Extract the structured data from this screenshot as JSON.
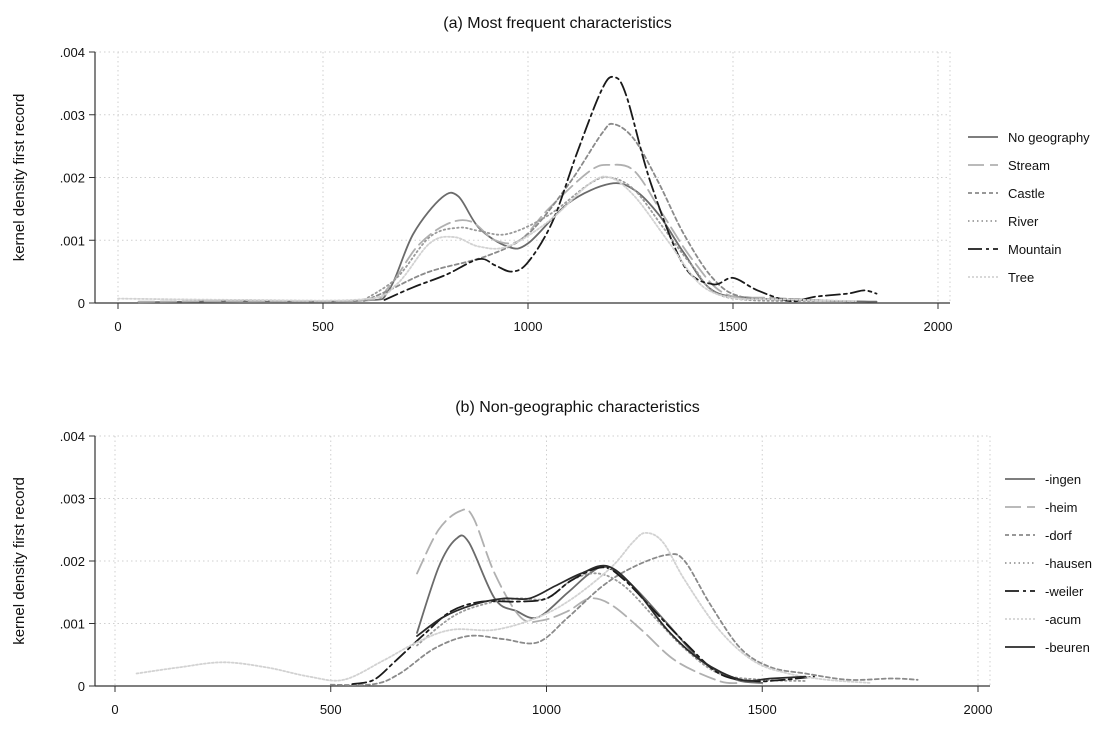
{
  "chart_data": [
    {
      "type": "line",
      "title": "(a) Most frequent characteristics",
      "xlabel": "",
      "ylabel": "kernel density first record",
      "xlim": [
        0,
        2000
      ],
      "ylim": [
        0,
        0.004
      ],
      "x_ticks": [
        "0",
        "500",
        "1000",
        "1500",
        "2000"
      ],
      "y_ticks": [
        "0",
        ".001",
        ".002",
        ".003",
        ".004"
      ],
      "grid": true,
      "legend": "right",
      "series": [
        {
          "name": "No geography",
          "color": "#6b6b6b",
          "dash": "",
          "points": [
            [
              50,
              1e-05
            ],
            [
              300,
              3e-05
            ],
            [
              600,
              4e-05
            ],
            [
              660,
              0.0002
            ],
            [
              720,
              0.0011
            ],
            [
              790,
              0.00168
            ],
            [
              830,
              0.0017
            ],
            [
              880,
              0.0012
            ],
            [
              950,
              0.0009
            ],
            [
              1000,
              0.00095
            ],
            [
              1100,
              0.0016
            ],
            [
              1200,
              0.0019
            ],
            [
              1260,
              0.0018
            ],
            [
              1320,
              0.0014
            ],
            [
              1380,
              0.0008
            ],
            [
              1450,
              0.0002
            ],
            [
              1550,
              8e-05
            ],
            [
              1700,
              4e-05
            ],
            [
              1850,
              2e-05
            ]
          ]
        },
        {
          "name": "Stream",
          "color": "#b0b0b0",
          "dash": "16 6",
          "points": [
            [
              50,
              2e-05
            ],
            [
              300,
              3e-05
            ],
            [
              600,
              4e-05
            ],
            [
              660,
              0.00025
            ],
            [
              730,
              0.0009
            ],
            [
              800,
              0.00125
            ],
            [
              860,
              0.0013
            ],
            [
              920,
              0.001
            ],
            [
              980,
              0.001
            ],
            [
              1050,
              0.0015
            ],
            [
              1150,
              0.0021
            ],
            [
              1200,
              0.0022
            ],
            [
              1260,
              0.0021
            ],
            [
              1330,
              0.0014
            ],
            [
              1400,
              0.0007
            ],
            [
              1480,
              0.00015
            ],
            [
              1600,
              8e-05
            ],
            [
              1800,
              2e-05
            ]
          ]
        },
        {
          "name": "Castle",
          "color": "#8a8a8a",
          "dash": "4 3",
          "points": [
            [
              600,
              3e-05
            ],
            [
              660,
              0.0002
            ],
            [
              760,
              0.0005
            ],
            [
              900,
              0.00075
            ],
            [
              1000,
              0.0011
            ],
            [
              1100,
              0.0019
            ],
            [
              1180,
              0.0027
            ],
            [
              1210,
              0.00285
            ],
            [
              1260,
              0.0026
            ],
            [
              1320,
              0.0019
            ],
            [
              1380,
              0.0011
            ],
            [
              1450,
              0.0004
            ],
            [
              1520,
              0.0001
            ],
            [
              1650,
              6e-05
            ],
            [
              1800,
              2e-05
            ]
          ]
        },
        {
          "name": "River",
          "color": "#9a9a9a",
          "dash": "1.5 3",
          "points": [
            [
              600,
              5e-05
            ],
            [
              680,
              0.0004
            ],
            [
              760,
              0.00105
            ],
            [
              830,
              0.0012
            ],
            [
              880,
              0.00115
            ],
            [
              950,
              0.0011
            ],
            [
              1050,
              0.0014
            ],
            [
              1150,
              0.0019
            ],
            [
              1200,
              0.002
            ],
            [
              1260,
              0.0018
            ],
            [
              1330,
              0.0012
            ],
            [
              1400,
              0.0006
            ],
            [
              1480,
              0.0001
            ],
            [
              1700,
              3e-05
            ]
          ]
        },
        {
          "name": "Mountain",
          "color": "#1a1a1a",
          "dash": "14 4 3 4",
          "points": [
            [
              650,
              5e-05
            ],
            [
              720,
              0.00025
            ],
            [
              800,
              0.00045
            ],
            [
              880,
              0.0007
            ],
            [
              920,
              0.0006
            ],
            [
              960,
              0.0005
            ],
            [
              1000,
              0.00065
            ],
            [
              1060,
              0.0013
            ],
            [
              1120,
              0.0024
            ],
            [
              1180,
              0.0034
            ],
            [
              1210,
              0.0036
            ],
            [
              1240,
              0.0033
            ],
            [
              1300,
              0.0019
            ],
            [
              1380,
              0.0006
            ],
            [
              1450,
              0.0003
            ],
            [
              1500,
              0.0004
            ],
            [
              1560,
              0.0002
            ],
            [
              1640,
              3e-05
            ],
            [
              1700,
              0.0001
            ],
            [
              1780,
              0.00015
            ],
            [
              1820,
              0.0002
            ],
            [
              1850,
              0.00015
            ]
          ]
        },
        {
          "name": "Tree",
          "color": "#d2d2d2",
          "dash": "2 2",
          "points": [
            [
              0,
              7e-05
            ],
            [
              300,
              5e-05
            ],
            [
              600,
              6e-05
            ],
            [
              680,
              0.0003
            ],
            [
              760,
              0.00095
            ],
            [
              820,
              0.00105
            ],
            [
              880,
              0.0009
            ],
            [
              950,
              0.0009
            ],
            [
              1050,
              0.0013
            ],
            [
              1150,
              0.0019
            ],
            [
              1200,
              0.002
            ],
            [
              1260,
              0.0017
            ],
            [
              1340,
              0.001
            ],
            [
              1420,
              0.0003
            ],
            [
              1500,
              8e-05
            ],
            [
              1600,
              6e-05
            ],
            [
              1800,
              3e-05
            ]
          ]
        }
      ]
    },
    {
      "type": "line",
      "title": "(b) Non-geographic characteristics",
      "xlabel": "",
      "ylabel": "kernel density first record",
      "xlim": [
        0,
        2000
      ],
      "ylim": [
        0,
        0.004
      ],
      "x_ticks": [
        "0",
        "500",
        "1000",
        "1500",
        "2000"
      ],
      "y_ticks": [
        "0",
        ".001",
        ".002",
        ".003",
        ".004"
      ],
      "grid": true,
      "legend": "right",
      "series": [
        {
          "name": "-ingen",
          "color": "#6b6b6b",
          "dash": "",
          "points": [
            [
              700,
              0.00085
            ],
            [
              750,
              0.0019
            ],
            [
              790,
              0.00235
            ],
            [
              820,
              0.0023
            ],
            [
              880,
              0.0014
            ],
            [
              930,
              0.0012
            ],
            [
              980,
              0.0011
            ],
            [
              1050,
              0.0015
            ],
            [
              1100,
              0.0018
            ],
            [
              1140,
              0.0019
            ],
            [
              1200,
              0.0016
            ],
            [
              1280,
              0.001
            ],
            [
              1360,
              0.0004
            ],
            [
              1440,
              0.0001
            ],
            [
              1500,
              5e-05
            ]
          ]
        },
        {
          "name": "-heim",
          "color": "#b0b0b0",
          "dash": "16 6",
          "points": [
            [
              700,
              0.0018
            ],
            [
              750,
              0.0025
            ],
            [
              800,
              0.0028
            ],
            [
              830,
              0.0027
            ],
            [
              880,
              0.0018
            ],
            [
              940,
              0.0011
            ],
            [
              990,
              0.00105
            ],
            [
              1050,
              0.0012
            ],
            [
              1100,
              0.0014
            ],
            [
              1150,
              0.0013
            ],
            [
              1220,
              0.0009
            ],
            [
              1300,
              0.0004
            ],
            [
              1400,
              8e-05
            ],
            [
              1450,
              5e-05
            ]
          ]
        },
        {
          "name": "-dorf",
          "color": "#8a8a8a",
          "dash": "4 3",
          "points": [
            [
              500,
              2e-05
            ],
            [
              600,
              3e-05
            ],
            [
              660,
              0.0002
            ],
            [
              740,
              0.0006
            ],
            [
              820,
              0.0008
            ],
            [
              900,
              0.00075
            ],
            [
              980,
              0.0007
            ],
            [
              1050,
              0.0011
            ],
            [
              1130,
              0.0016
            ],
            [
              1200,
              0.0019
            ],
            [
              1280,
              0.0021
            ],
            [
              1320,
              0.002
            ],
            [
              1380,
              0.0013
            ],
            [
              1450,
              0.0006
            ],
            [
              1520,
              0.0003
            ],
            [
              1600,
              0.0002
            ],
            [
              1700,
              0.0001
            ],
            [
              1800,
              0.00012
            ],
            [
              1860,
              0.0001
            ]
          ]
        },
        {
          "name": "-hausen",
          "color": "#9a9a9a",
          "dash": "1.5 3",
          "points": [
            [
              700,
              0.00065
            ],
            [
              780,
              0.0011
            ],
            [
              850,
              0.0013
            ],
            [
              930,
              0.0014
            ],
            [
              1000,
              0.0014
            ],
            [
              1060,
              0.0017
            ],
            [
              1120,
              0.0018
            ],
            [
              1180,
              0.0016
            ],
            [
              1250,
              0.0011
            ],
            [
              1320,
              0.0006
            ],
            [
              1400,
              0.0002
            ],
            [
              1500,
              0.0001
            ],
            [
              1600,
              8e-05
            ]
          ]
        },
        {
          "name": "-weiler",
          "color": "#1a1a1a",
          "dash": "14 4 3 4",
          "points": [
            [
              550,
              3e-05
            ],
            [
              600,
              0.0001
            ],
            [
              650,
              0.0004
            ],
            [
              720,
              0.00085
            ],
            [
              780,
              0.0012
            ],
            [
              850,
              0.00135
            ],
            [
              930,
              0.00135
            ],
            [
              1000,
              0.0014
            ],
            [
              1060,
              0.0017
            ],
            [
              1130,
              0.0019
            ],
            [
              1180,
              0.0017
            ],
            [
              1250,
              0.0012
            ],
            [
              1320,
              0.0007
            ],
            [
              1400,
              0.0002
            ],
            [
              1480,
              8e-05
            ],
            [
              1550,
              0.0001
            ],
            [
              1620,
              0.00015
            ]
          ]
        },
        {
          "name": "-acum",
          "color": "#d2d2d2",
          "dash": "2 2",
          "points": [
            [
              50,
              0.0002
            ],
            [
              150,
              0.0003
            ],
            [
              250,
              0.00038
            ],
            [
              350,
              0.0003
            ],
            [
              450,
              0.00015
            ],
            [
              530,
              0.0001
            ],
            [
              620,
              0.0004
            ],
            [
              700,
              0.0007
            ],
            [
              780,
              0.0009
            ],
            [
              880,
              0.0009
            ],
            [
              980,
              0.0011
            ],
            [
              1060,
              0.0014
            ],
            [
              1150,
              0.0019
            ],
            [
              1200,
              0.0023
            ],
            [
              1230,
              0.00245
            ],
            [
              1270,
              0.0023
            ],
            [
              1320,
              0.0017
            ],
            [
              1400,
              0.0009
            ],
            [
              1480,
              0.0004
            ],
            [
              1560,
              0.0002
            ],
            [
              1650,
              0.0001
            ],
            [
              1750,
              5e-05
            ]
          ]
        },
        {
          "name": "-beuren",
          "color": "#2a2a2a",
          "dash": "",
          "points": [
            [
              700,
              0.0008
            ],
            [
              760,
              0.0011
            ],
            [
              830,
              0.0013
            ],
            [
              900,
              0.0014
            ],
            [
              960,
              0.0014
            ],
            [
              1020,
              0.0016
            ],
            [
              1080,
              0.0018
            ],
            [
              1140,
              0.00192
            ],
            [
              1200,
              0.0016
            ],
            [
              1280,
              0.0009
            ],
            [
              1360,
              0.0004
            ],
            [
              1450,
              0.0001
            ],
            [
              1520,
              0.00012
            ],
            [
              1600,
              0.00015
            ]
          ]
        }
      ]
    }
  ]
}
